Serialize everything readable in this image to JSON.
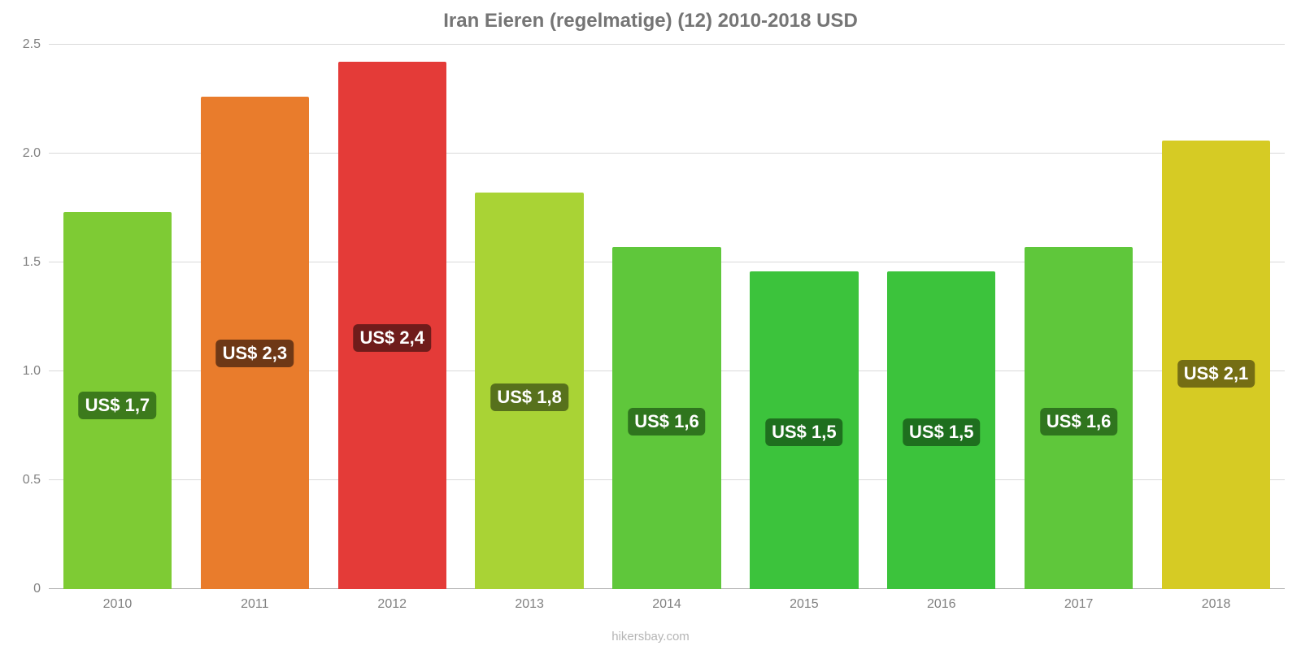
{
  "chart": {
    "type": "bar",
    "title": "Iran Eieren (regelmatige) (12) 2010-2018 USD",
    "title_color": "#757575",
    "title_fontsize": 24,
    "background_color": "#ffffff",
    "grid_color": "#d9d9d9",
    "axis_label_color": "#808080",
    "axis_label_fontsize": 16,
    "bar_label_fontsize": 22,
    "bar_label_text_color": "#ffffff",
    "attribution": "hikersbay.com",
    "attribution_color": "#b5b5b5",
    "ylim": [
      0,
      2.5
    ],
    "yticks": [
      0,
      0.5,
      1.0,
      1.5,
      2.0,
      2.5
    ],
    "ytick_labels": [
      "0",
      "0.5",
      "1.0",
      "1.5",
      "2.0",
      "2.5"
    ],
    "categories": [
      "2010",
      "2011",
      "2012",
      "2013",
      "2014",
      "2015",
      "2016",
      "2017",
      "2018"
    ],
    "values": [
      1.73,
      2.26,
      2.42,
      1.82,
      1.57,
      1.46,
      1.46,
      1.57,
      2.06
    ],
    "value_labels": [
      "US$ 1,7",
      "US$ 2,3",
      "US$ 2,4",
      "US$ 1,8",
      "US$ 1,6",
      "US$ 1,5",
      "US$ 1,5",
      "US$ 1,6",
      "US$ 2,1"
    ],
    "bar_colors": [
      "#7ecb34",
      "#e97c2c",
      "#e43b38",
      "#a9d335",
      "#5fc73b",
      "#3cc33c",
      "#3cc33c",
      "#5fc73b",
      "#d6cb24"
    ],
    "label_bg_colors": [
      "#3c7a1c",
      "#6e3816",
      "#6f1c1b",
      "#57711c",
      "#2f751e",
      "#1e6f1e",
      "#1e6f1e",
      "#2f751e",
      "#756e14"
    ],
    "bar_width": 0.79,
    "slot_padding": 0.105
  }
}
